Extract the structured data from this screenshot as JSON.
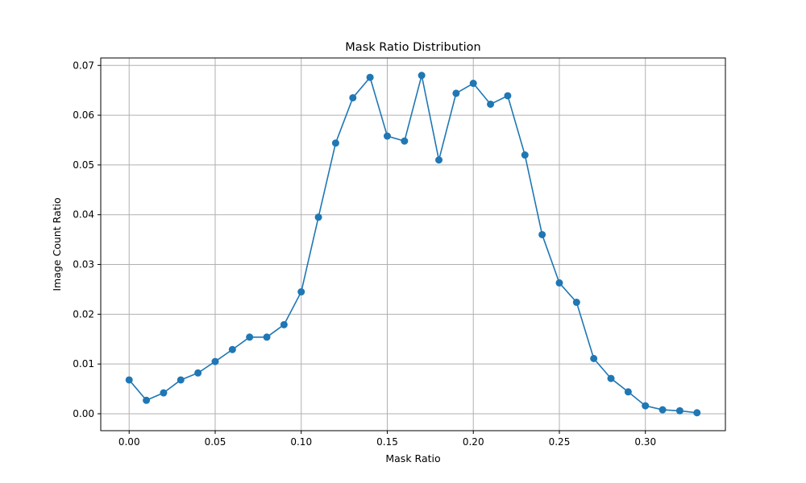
{
  "chart_data": {
    "type": "line",
    "title": "Mask Ratio Distribution",
    "xlabel": "Mask Ratio",
    "ylabel": "Image Count Ratio",
    "xlim": [
      -0.0165,
      0.3465
    ],
    "ylim": [
      -0.0034,
      0.0715
    ],
    "xticks": [
      0.0,
      0.05,
      0.1,
      0.15,
      0.2,
      0.25,
      0.3
    ],
    "xtick_labels": [
      "0.00",
      "0.05",
      "0.10",
      "0.15",
      "0.20",
      "0.25",
      "0.30"
    ],
    "yticks": [
      0.0,
      0.01,
      0.02,
      0.03,
      0.04,
      0.05,
      0.06,
      0.07
    ],
    "ytick_labels": [
      "0.00",
      "0.01",
      "0.02",
      "0.03",
      "0.04",
      "0.05",
      "0.06",
      "0.07"
    ],
    "grid": true,
    "color": "#1f77b4",
    "marker": "circle",
    "series": [
      {
        "x": [
          0.0,
          0.01,
          0.02,
          0.03,
          0.04,
          0.05,
          0.06,
          0.07,
          0.08,
          0.09,
          0.1,
          0.11,
          0.12,
          0.13,
          0.14,
          0.15,
          0.16,
          0.17,
          0.18,
          0.19,
          0.2,
          0.21,
          0.22,
          0.23,
          0.24,
          0.25,
          0.26,
          0.27,
          0.28,
          0.29,
          0.3,
          0.31,
          0.32,
          0.33
        ],
        "y": [
          0.0068,
          0.0027,
          0.0042,
          0.0068,
          0.0082,
          0.0105,
          0.0129,
          0.0154,
          0.0154,
          0.0179,
          0.0245,
          0.0395,
          0.0544,
          0.0635,
          0.0676,
          0.0558,
          0.0548,
          0.068,
          0.051,
          0.0644,
          0.0664,
          0.0622,
          0.0639,
          0.052,
          0.036,
          0.0263,
          0.0224,
          0.0111,
          0.0071,
          0.0044,
          0.0016,
          0.0008,
          0.0006,
          0.0002
        ]
      }
    ]
  }
}
